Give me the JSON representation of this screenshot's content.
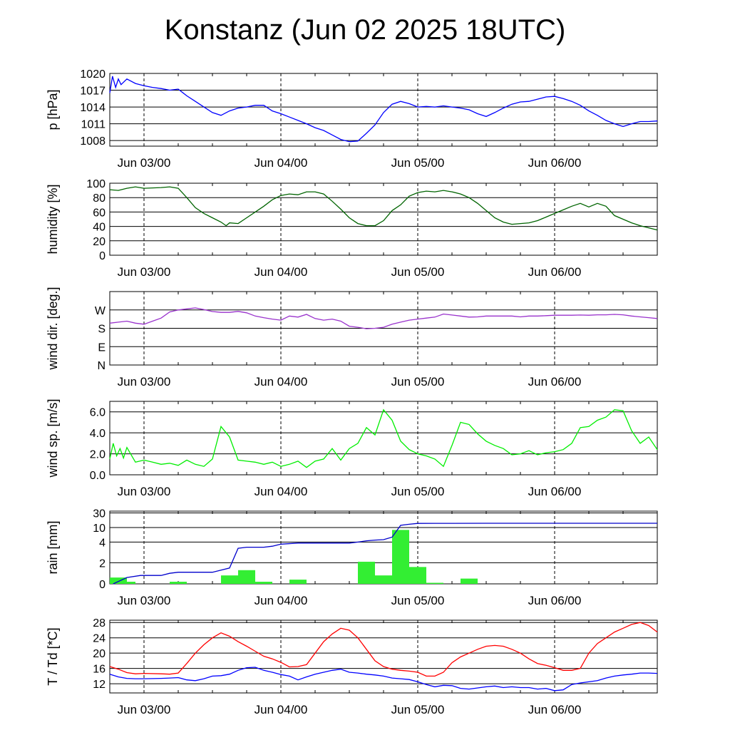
{
  "title": "Konstanz (Jun 02 2025 18UTC)",
  "date_labels": [
    "Jun 03/00",
    "Jun 04/00",
    "Jun 05/00",
    "Jun 06/00"
  ],
  "chart_data": [
    {
      "type": "line",
      "ylabel": "p [hPa]",
      "ylim": [
        1007,
        1020
      ],
      "yticks": [
        1020,
        1017,
        1014,
        1011,
        1008
      ],
      "grid": true,
      "series": [
        {
          "color": "#0000ff",
          "x": [
            0,
            0.08,
            0.17,
            0.25,
            0.33,
            0.5,
            0.75,
            1.0,
            1.25,
            1.5,
            1.75,
            2.0,
            2.25,
            2.5,
            2.75,
            3.0,
            3.25,
            3.5,
            3.75,
            4.0,
            4.25,
            4.5,
            4.75,
            5.0,
            5.25,
            5.5,
            5.75,
            6.0,
            6.25,
            6.5,
            6.75,
            7.0,
            7.25,
            7.5,
            7.75,
            8.0,
            8.25,
            8.5,
            8.75,
            9.0,
            9.25,
            9.5,
            9.75,
            10.0,
            10.25,
            10.5,
            10.75,
            11.0,
            11.25,
            11.5,
            11.75,
            12.0,
            12.25,
            12.5,
            12.75,
            13.0,
            13.25,
            13.5,
            13.75,
            14.0,
            14.25,
            14.5,
            14.75,
            15.0,
            15.25,
            15.5,
            15.75,
            16.0
          ],
          "values": [
            1016.5,
            1019.5,
            1017.5,
            1019,
            1018,
            1019,
            1018.2,
            1017.8,
            1017.5,
            1017.3,
            1017.0,
            1017.2,
            1016,
            1015,
            1014,
            1013,
            1012.5,
            1013.3,
            1013.8,
            1014.0,
            1014.3,
            1014.3,
            1013.3,
            1012.8,
            1012.2,
            1011.6,
            1011.0,
            1010.3,
            1009.8,
            1009.0,
            1008.2,
            1007.8,
            1007.9,
            1009.3,
            1010.8,
            1013.0,
            1014.5,
            1015.0,
            1014.6,
            1014.0,
            1014.1,
            1014.0,
            1014.2,
            1014.0,
            1013.8,
            1013.5,
            1012.8,
            1012.3,
            1013.0,
            1013.8,
            1014.5,
            1014.9,
            1015.0,
            1015.4,
            1015.8,
            1015.9,
            1015.5,
            1015.0,
            1014.3,
            1013.3,
            1012.5,
            1011.6,
            1011.0,
            1010.5,
            1011.0,
            1011.4,
            1011.4,
            1011.5
          ]
        }
      ]
    },
    {
      "type": "line",
      "ylabel": "humidity [%]",
      "ylim": [
        0,
        100
      ],
      "yticks": [
        100,
        80,
        60,
        40,
        20,
        0
      ],
      "grid": true,
      "series": [
        {
          "color": "#006400",
          "x": [
            0,
            0.25,
            0.5,
            0.75,
            1.0,
            1.5,
            1.75,
            2.0,
            2.25,
            2.5,
            2.75,
            3.0,
            3.25,
            3.4,
            3.5,
            3.75,
            4.0,
            4.25,
            4.5,
            4.75,
            5.0,
            5.25,
            5.5,
            5.75,
            6.0,
            6.25,
            6.5,
            6.75,
            7.0,
            7.25,
            7.5,
            7.75,
            8.0,
            8.25,
            8.5,
            8.75,
            9.0,
            9.25,
            9.5,
            9.75,
            10.0,
            10.25,
            10.5,
            10.75,
            11.0,
            11.25,
            11.5,
            11.75,
            12.0,
            12.25,
            12.5,
            12.75,
            13.0,
            13.25,
            13.5,
            13.75,
            14.0,
            14.25,
            14.5,
            14.75,
            15.0,
            15.25,
            15.5,
            15.75,
            16.0
          ],
          "values": [
            91,
            90,
            93,
            95,
            93,
            94,
            95,
            93,
            80,
            66,
            58,
            52,
            46,
            41,
            45,
            44,
            52,
            60,
            68,
            77,
            83,
            85,
            84,
            88,
            88,
            85,
            75,
            64,
            52,
            44,
            41,
            41,
            48,
            62,
            70,
            82,
            87,
            89,
            88,
            90,
            88,
            85,
            80,
            72,
            62,
            52,
            46,
            43,
            44,
            45,
            48,
            53,
            58,
            63,
            68,
            72,
            67,
            72,
            68,
            55,
            50,
            45,
            41,
            38,
            35
          ]
        }
      ]
    },
    {
      "type": "line",
      "ylabel": "wind dir. [deg.]",
      "ylim": [
        0,
        360
      ],
      "yticks": [
        "W",
        "S",
        "E",
        "N"
      ],
      "ytick_values": [
        270,
        180,
        90,
        0
      ],
      "grid": true,
      "series": [
        {
          "color": "#9932cc",
          "x": [
            0,
            0.25,
            0.5,
            0.75,
            1.0,
            1.25,
            1.5,
            1.75,
            2.0,
            2.25,
            2.5,
            2.75,
            3.0,
            3.25,
            3.5,
            3.75,
            4.0,
            4.25,
            4.5,
            4.75,
            5.0,
            5.25,
            5.5,
            5.75,
            6.0,
            6.25,
            6.5,
            6.75,
            7.0,
            7.25,
            7.5,
            7.75,
            8.0,
            8.25,
            8.5,
            8.75,
            9.0,
            9.25,
            9.5,
            9.75,
            10.0,
            10.25,
            10.5,
            10.75,
            11.0,
            11.25,
            11.5,
            11.75,
            12.0,
            12.25,
            12.5,
            12.75,
            13.0,
            13.25,
            13.5,
            13.75,
            14.0,
            14.25,
            14.5,
            14.75,
            15.0,
            15.25,
            15.5,
            15.75,
            16.0
          ],
          "values": [
            205,
            210,
            215,
            205,
            200,
            215,
            230,
            260,
            270,
            275,
            280,
            272,
            262,
            258,
            258,
            263,
            256,
            240,
            232,
            225,
            220,
            240,
            235,
            248,
            228,
            220,
            225,
            215,
            190,
            185,
            178,
            180,
            185,
            200,
            210,
            220,
            225,
            230,
            235,
            250,
            245,
            240,
            235,
            236,
            240,
            240,
            240,
            240,
            236,
            240,
            240,
            242,
            244,
            244,
            244,
            245,
            244,
            246,
            246,
            248,
            246,
            240,
            236,
            232,
            228
          ],
          "note": "segmented"
        }
      ]
    },
    {
      "type": "line",
      "ylabel": "wind sp. [m/s]",
      "ylim": [
        0,
        7
      ],
      "yticks": [
        "6.0",
        "4.0",
        "2.0",
        "0.0"
      ],
      "ytick_values": [
        6,
        4,
        2,
        0
      ],
      "grid": true,
      "series": [
        {
          "color": "#00ee00",
          "x": [
            0,
            0.1,
            0.2,
            0.3,
            0.4,
            0.5,
            0.75,
            1.0,
            1.25,
            1.5,
            1.75,
            2.0,
            2.25,
            2.5,
            2.75,
            3.0,
            3.25,
            3.5,
            3.75,
            4.0,
            4.25,
            4.5,
            4.75,
            5.0,
            5.25,
            5.5,
            5.75,
            6.0,
            6.25,
            6.5,
            6.75,
            7.0,
            7.25,
            7.5,
            7.75,
            8.0,
            8.25,
            8.5,
            8.75,
            9.0,
            9.25,
            9.5,
            9.75,
            10.0,
            10.25,
            10.5,
            10.75,
            11.0,
            11.25,
            11.5,
            11.75,
            12.0,
            12.25,
            12.5,
            12.75,
            13.0,
            13.25,
            13.5,
            13.75,
            14.0,
            14.25,
            14.5,
            14.75,
            15.0,
            15.25,
            15.5,
            15.75,
            16.0
          ],
          "values": [
            1.5,
            3.0,
            1.8,
            2.5,
            1.6,
            2.6,
            1.2,
            1.4,
            1.2,
            1.0,
            1.1,
            0.9,
            1.4,
            1.0,
            0.8,
            1.5,
            4.6,
            3.6,
            1.4,
            1.3,
            1.2,
            1.0,
            1.2,
            0.8,
            1.0,
            1.3,
            0.7,
            1.3,
            1.5,
            2.5,
            1.4,
            2.5,
            3.0,
            4.5,
            3.8,
            6.2,
            5.2,
            3.2,
            2.4,
            2.0,
            1.8,
            1.5,
            0.8,
            2.8,
            5.0,
            4.8,
            3.9,
            3.2,
            2.8,
            2.5,
            1.9,
            2.0,
            2.3,
            1.9,
            2.1,
            2.2,
            2.4,
            3.0,
            4.5,
            4.6,
            5.2,
            5.5,
            6.2,
            6.1,
            4.2,
            3.0,
            3.6,
            2.4
          ]
        }
      ]
    },
    {
      "type": "bar",
      "ylabel": "rain [mm]",
      "yticks": [
        "30",
        "10",
        "4",
        "2",
        "0"
      ],
      "grid": true,
      "bars": {
        "color": "#33ee33",
        "x_start": [
          0,
          0.5,
          1.75,
          3.25,
          3.75,
          4.25,
          5.25,
          7.25,
          7.75,
          8.25,
          8.75,
          9.25,
          10.25
        ],
        "x_end": [
          0.5,
          0.75,
          2.25,
          3.75,
          4.25,
          4.75,
          5.75,
          7.75,
          8.25,
          8.75,
          9.25,
          9.75,
          10.75
        ],
        "values": [
          0.6,
          0.2,
          0.2,
          0.8,
          1.3,
          0.2,
          0.4,
          2.1,
          0.8,
          9.0,
          1.6,
          0.1,
          0.5
        ]
      },
      "series": [
        {
          "name": "",
          "color": "#0000cc",
          "x": [
            0.1,
            0.5,
            0.9,
            1.5,
            1.75,
            2.0,
            2.5,
            3.0,
            3.25,
            3.5,
            3.75,
            4.0,
            4.5,
            4.75,
            5.0,
            5.5,
            6.0,
            7.0,
            7.25,
            7.5,
            7.75,
            8.0,
            8.25,
            8.5,
            8.75,
            9.0,
            9.5,
            10.0,
            11.0,
            12.0,
            14.0,
            16.0
          ],
          "values": [
            0.0,
            0.6,
            0.8,
            0.8,
            1.0,
            1.1,
            1.1,
            1.1,
            1.3,
            1.5,
            3.4,
            3.5,
            3.5,
            3.6,
            3.8,
            3.9,
            3.9,
            3.9,
            4.0,
            4.5,
            4.8,
            5.0,
            6.0,
            13.0,
            14.5,
            15.6,
            15.7,
            15.7,
            15.8,
            15.8,
            15.8,
            15.8
          ]
        }
      ]
    },
    {
      "type": "line",
      "ylabel": "T / Td [*C]",
      "ylim": [
        9.6,
        28.6
      ],
      "yticks": [
        28,
        24,
        20,
        16,
        12
      ],
      "grid": true,
      "series": [
        {
          "color": "#ff0000",
          "x": [
            0,
            0.25,
            0.5,
            0.75,
            1.0,
            1.5,
            1.75,
            2.0,
            2.25,
            2.5,
            2.75,
            3.0,
            3.25,
            3.5,
            3.75,
            4.0,
            4.25,
            4.5,
            4.75,
            5.0,
            5.25,
            5.5,
            5.75,
            6.0,
            6.25,
            6.5,
            6.75,
            7.0,
            7.25,
            7.5,
            7.75,
            8.0,
            8.25,
            8.5,
            8.75,
            9.0,
            9.25,
            9.5,
            9.75,
            10.0,
            10.25,
            10.5,
            10.75,
            11.0,
            11.25,
            11.5,
            11.75,
            12.0,
            12.25,
            12.5,
            12.75,
            13.0,
            13.25,
            13.5,
            13.75,
            14.0,
            14.25,
            14.5,
            14.75,
            15.0,
            15.25,
            15.5,
            15.75,
            16.0
          ],
          "values": [
            16.5,
            15.8,
            14.9,
            14.6,
            14.7,
            14.6,
            14.5,
            14.8,
            17.3,
            20.0,
            22.2,
            24.0,
            25.3,
            24.4,
            23.0,
            21.8,
            20.5,
            19.2,
            18.5,
            17.6,
            16.4,
            16.5,
            17.0,
            20.0,
            23.0,
            25.0,
            26.5,
            26.0,
            24.0,
            21.0,
            18.0,
            16.5,
            15.8,
            15.5,
            15.3,
            15.0,
            14.0,
            14.0,
            15.0,
            17.5,
            19.0,
            20.0,
            21.0,
            21.8,
            22.0,
            21.8,
            21.0,
            20.0,
            18.5,
            17.3,
            16.8,
            16.2,
            15.5,
            15.5,
            16.0,
            20.0,
            22.5,
            24.0,
            25.5,
            26.5,
            27.5,
            28.0,
            27.2,
            25.5
          ]
        },
        {
          "color": "#0000ff",
          "x": [
            0,
            0.25,
            0.5,
            0.75,
            1.0,
            1.5,
            1.75,
            2.0,
            2.25,
            2.5,
            2.75,
            3.0,
            3.25,
            3.5,
            3.75,
            4.0,
            4.25,
            4.5,
            4.75,
            5.0,
            5.25,
            5.5,
            5.75,
            6.0,
            6.25,
            6.5,
            6.75,
            7.0,
            7.25,
            7.5,
            7.75,
            8.0,
            8.25,
            8.5,
            8.75,
            9.0,
            9.25,
            9.5,
            9.75,
            10.0,
            10.25,
            10.5,
            10.75,
            11.0,
            11.25,
            11.5,
            11.75,
            12.0,
            12.25,
            12.5,
            12.75,
            13.0,
            13.25,
            13.5,
            13.75,
            14.0,
            14.25,
            14.5,
            14.75,
            15.0,
            15.25,
            15.5,
            15.75,
            16.0
          ],
          "values": [
            14.5,
            13.8,
            13.4,
            13.3,
            13.3,
            13.4,
            13.5,
            13.6,
            13.0,
            12.8,
            13.3,
            14.0,
            14.1,
            14.5,
            15.5,
            16.2,
            16.3,
            15.5,
            15.0,
            14.4,
            14.0,
            13.0,
            13.8,
            14.5,
            15.0,
            15.5,
            15.8,
            15.0,
            14.8,
            14.5,
            14.3,
            14.0,
            13.5,
            13.3,
            13.1,
            12.5,
            11.8,
            11.2,
            11.6,
            11.5,
            10.8,
            10.6,
            10.9,
            11.2,
            11.4,
            11.0,
            11.2,
            11.0,
            11.0,
            10.6,
            10.8,
            10.2,
            10.4,
            11.8,
            12.2,
            12.5,
            12.8,
            13.5,
            14.0,
            14.3,
            14.5,
            14.8,
            14.8,
            14.7
          ]
        }
      ]
    }
  ]
}
